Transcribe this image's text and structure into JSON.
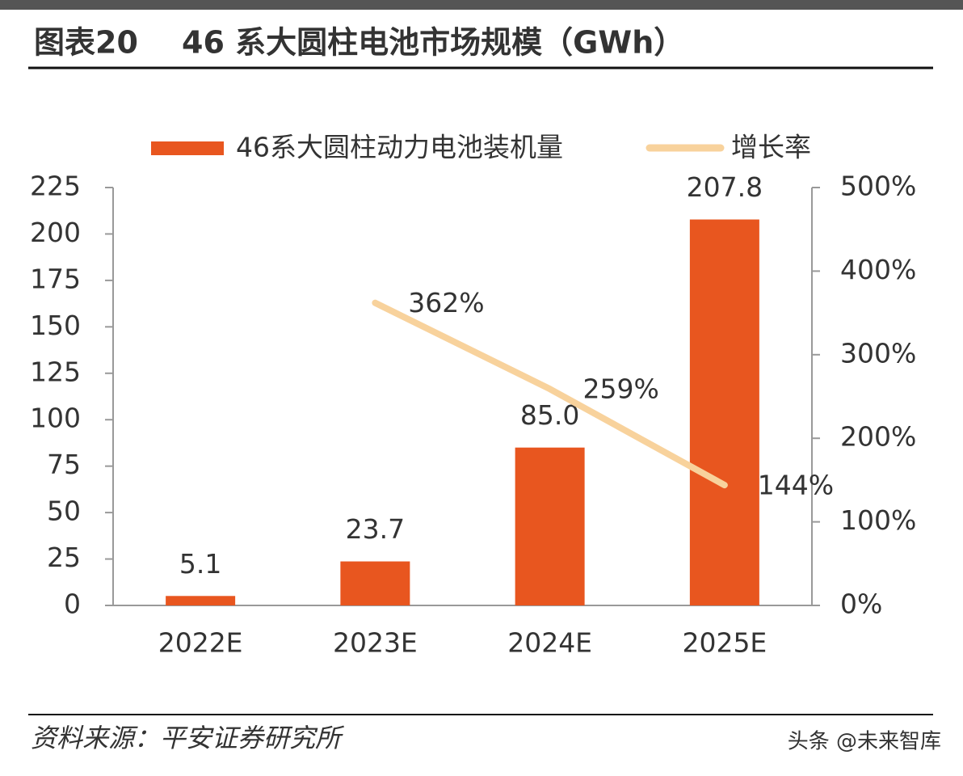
{
  "chart_data": {
    "type": "bar",
    "figure_label": "图表20",
    "title": "46 系大圆柱电池市场规模（GWh）",
    "categories": [
      "2022E",
      "2023E",
      "2024E",
      "2025E"
    ],
    "series": [
      {
        "name": "46系大圆柱动力电池装机量",
        "type": "bar",
        "color": "#e8561f",
        "values": [
          5.1,
          23.7,
          85.0,
          207.8
        ],
        "value_labels": [
          "5.1",
          "23.7",
          "85.0",
          "207.8"
        ]
      },
      {
        "name": "增长率",
        "type": "line",
        "axis": "y2",
        "color": "#f8d29c",
        "values": [
          null,
          362,
          259,
          144
        ],
        "value_labels": [
          null,
          "362%",
          "259%",
          "144%"
        ]
      }
    ],
    "ylim": [
      0,
      225
    ],
    "yticks": [
      0,
      25,
      50,
      75,
      100,
      125,
      150,
      175,
      200,
      225
    ],
    "y2lim": [
      0,
      500
    ],
    "y2ticks": [
      {
        "value": 0,
        "label": "0%"
      },
      {
        "value": 100,
        "label": "100%"
      },
      {
        "value": 200,
        "label": "200%"
      },
      {
        "value": 300,
        "label": "300%"
      },
      {
        "value": 400,
        "label": "400%"
      },
      {
        "value": 500,
        "label": "500%"
      }
    ],
    "legend": "top",
    "source": "资料来源：平安证券研究所",
    "watermark": "头条 @未来智库"
  }
}
